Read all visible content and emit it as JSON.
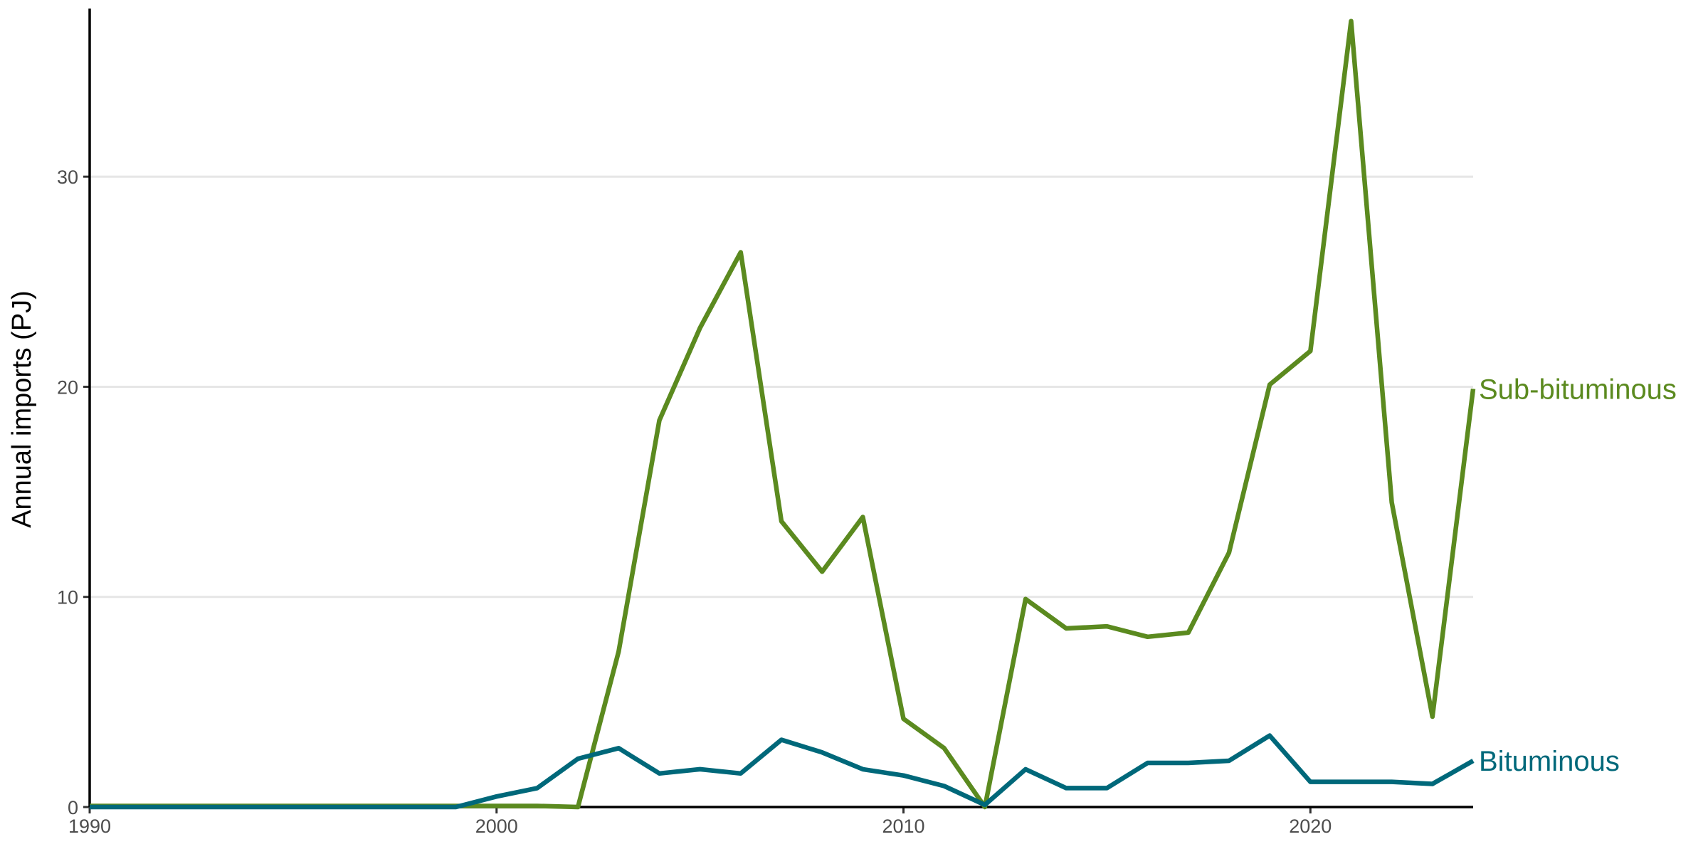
{
  "chart_data": {
    "type": "line",
    "title": "",
    "xlabel": "",
    "ylabel": "Annual imports (PJ)",
    "xlim": [
      1990,
      2024
    ],
    "ylim": [
      0,
      38
    ],
    "x_ticks": [
      1990,
      2000,
      2010,
      2020
    ],
    "y_ticks": [
      0,
      10,
      20,
      30
    ],
    "grid": "horizontal major gridlines",
    "legend": "direct labels at line ends (right)",
    "x": [
      1990,
      1991,
      1992,
      1993,
      1994,
      1995,
      1996,
      1997,
      1998,
      1999,
      2000,
      2001,
      2002,
      2003,
      2004,
      2005,
      2006,
      2007,
      2008,
      2009,
      2010,
      2011,
      2012,
      2013,
      2014,
      2015,
      2016,
      2017,
      2018,
      2019,
      2020,
      2021,
      2022,
      2023,
      2024
    ],
    "series": [
      {
        "name": "Sub-bituminous",
        "color": "#5b8a1f",
        "values": [
          0.05,
          0.05,
          0.05,
          0.05,
          0.05,
          0.05,
          0.05,
          0.05,
          0.05,
          0.05,
          0.05,
          0.05,
          0.0,
          7.4,
          18.4,
          22.8,
          26.4,
          13.6,
          11.2,
          13.8,
          4.2,
          2.8,
          0.0,
          9.9,
          8.5,
          8.6,
          8.1,
          8.3,
          12.1,
          20.1,
          21.7,
          37.4,
          14.5,
          4.3,
          19.9
        ]
      },
      {
        "name": "Bituminous",
        "color": "#00687a",
        "values": [
          0.0,
          0.0,
          0.0,
          0.0,
          0.0,
          0.0,
          0.0,
          0.0,
          0.0,
          0.0,
          0.5,
          0.9,
          2.3,
          2.8,
          1.6,
          1.8,
          1.6,
          3.2,
          2.6,
          1.8,
          1.5,
          1.0,
          0.1,
          1.8,
          0.9,
          0.9,
          2.1,
          2.1,
          2.2,
          3.4,
          1.2,
          1.2,
          1.2,
          1.1,
          2.2
        ]
      }
    ]
  }
}
